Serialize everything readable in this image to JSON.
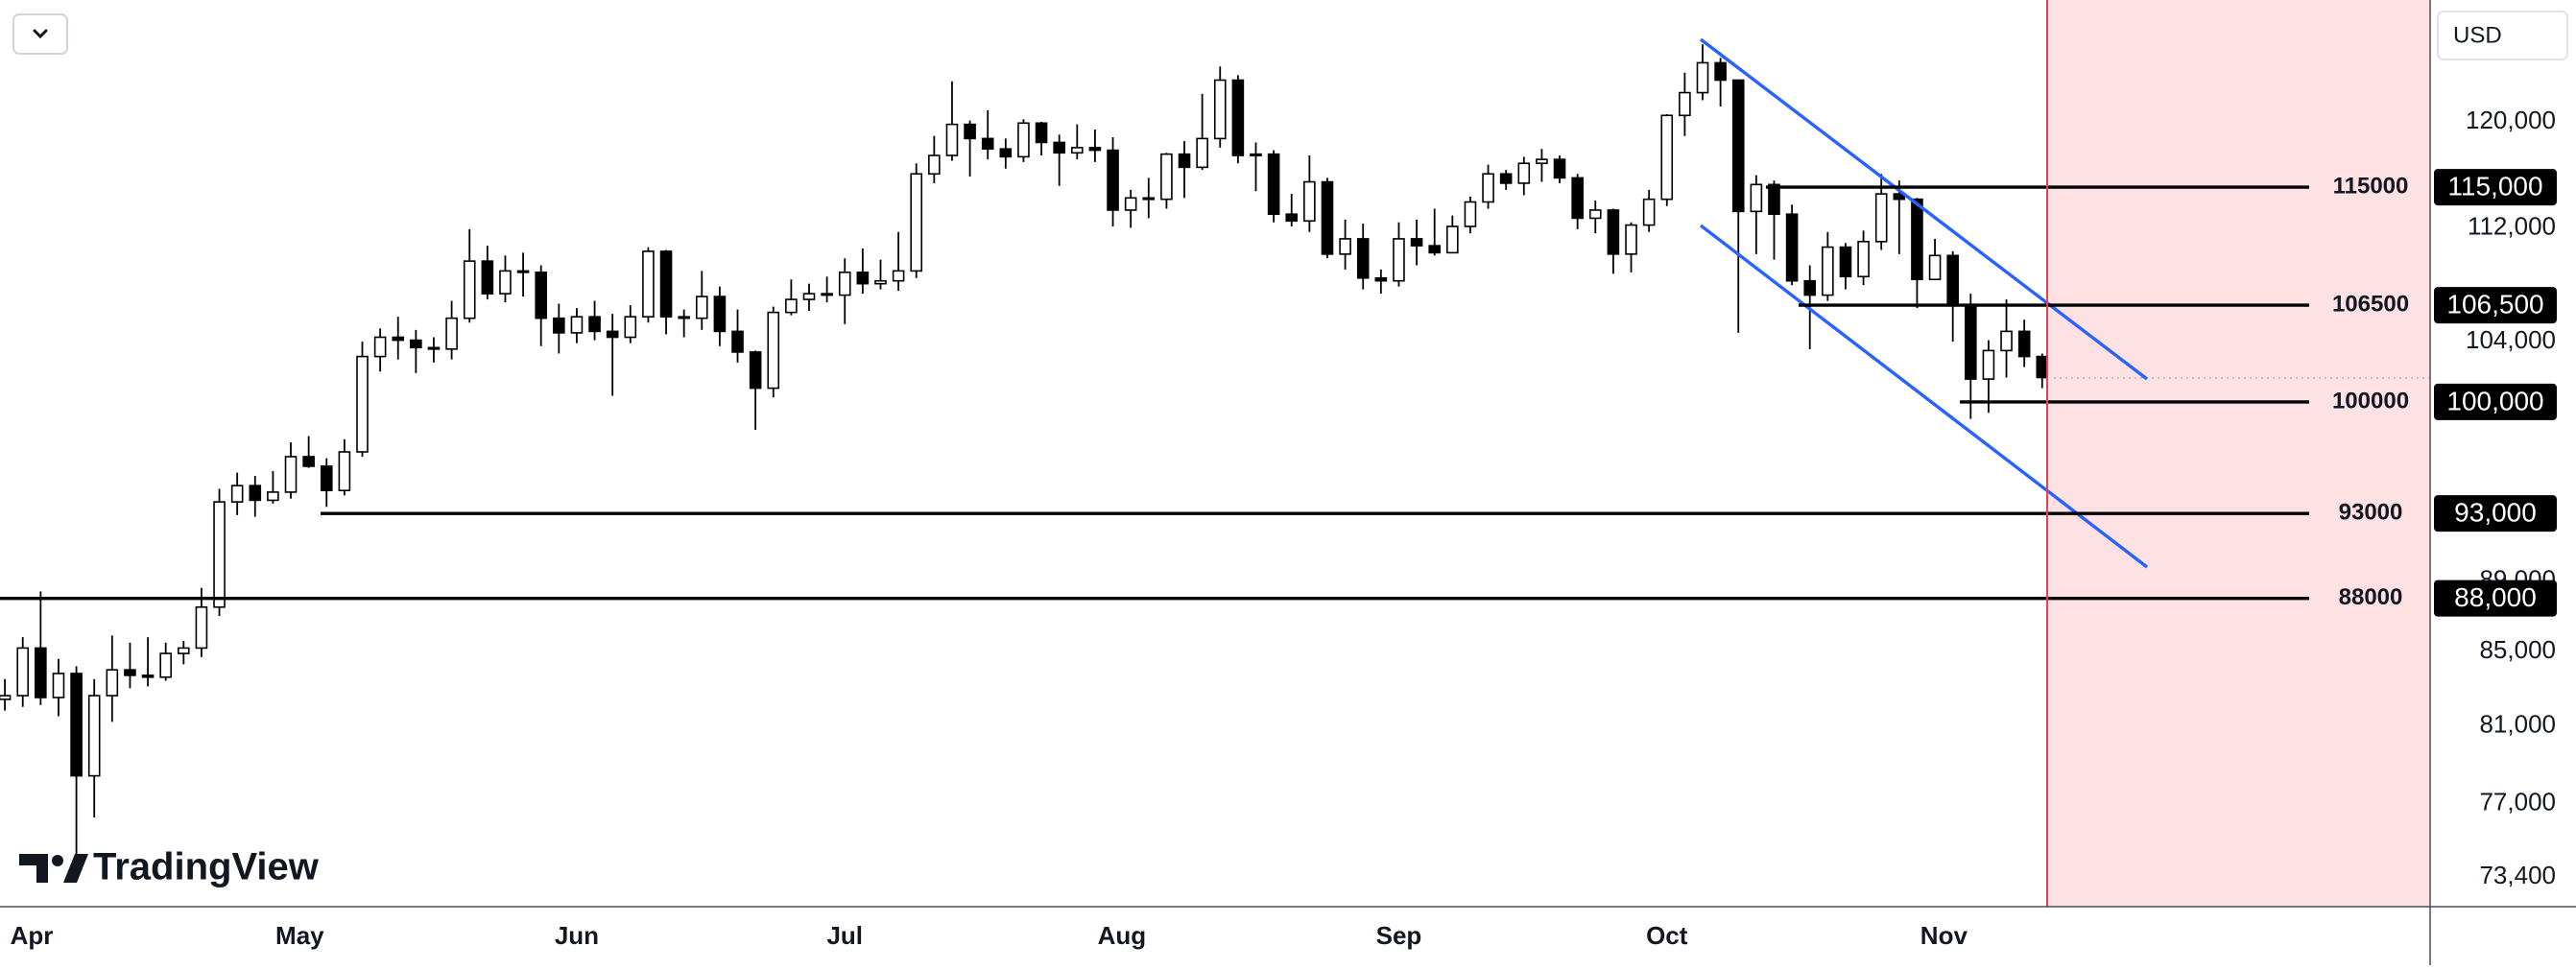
{
  "chart_data": {
    "type": "candlestick",
    "log_scale": true,
    "currency": "USD",
    "brand": "TradingView",
    "categories": [
      "Apr",
      "May",
      "Jun",
      "Jul",
      "Aug",
      "Sep",
      "Oct",
      "Nov"
    ],
    "up_color": "#ffffff",
    "down_color": "#000000",
    "channel_color": "#2962ff",
    "open": [
      82400,
      82600,
      85200,
      82500,
      83800,
      78400,
      82600,
      84000,
      83700,
      83600,
      84900,
      85200,
      87500,
      93700,
      94700,
      93800,
      94300,
      96500,
      95900,
      94400,
      96800,
      103000,
      104300,
      104100,
      103600,
      103500,
      105600,
      109600,
      107300,
      108900,
      108800,
      105600,
      104600,
      105700,
      104700,
      104300,
      105700,
      110300,
      105700,
      105600,
      107100,
      104700,
      103300,
      100900,
      106000,
      106900,
      107300,
      107200,
      108800,
      108000,
      108200,
      108900,
      116000,
      117400,
      119800,
      118700,
      117900,
      117300,
      119900,
      118400,
      117600,
      118000,
      117800,
      113300,
      114200,
      114100,
      117500,
      116500,
      118700,
      123300,
      117400,
      117500,
      113000,
      112500,
      115400,
      110100,
      111200,
      108400,
      108200,
      111200,
      110700,
      110200,
      112100,
      113900,
      116000,
      115300,
      116800,
      117100,
      115700,
      112700,
      113300,
      110100,
      112200,
      114100,
      120500,
      122300,
      124700,
      123300,
      113200,
      115200,
      113000,
      108200,
      107200,
      110600,
      108500,
      111000,
      114500,
      114100,
      108300,
      110000,
      106500,
      101500,
      103400,
      104700,
      103000
    ],
    "high": [
      83500,
      85800,
      88400,
      84600,
      84200,
      83500,
      85900,
      85500,
      85800,
      85500,
      85600,
      88600,
      94500,
      95500,
      95300,
      95600,
      97400,
      97800,
      96400,
      97600,
      104000,
      104900,
      105700,
      104800,
      104300,
      106800,
      111900,
      110700,
      110000,
      110200,
      109300,
      106600,
      106300,
      106800,
      105900,
      106500,
      110600,
      110400,
      106200,
      108900,
      107800,
      106200,
      103400,
      106400,
      108300,
      108000,
      108500,
      109800,
      110500,
      109700,
      111700,
      116800,
      118900,
      123200,
      120100,
      120900,
      118700,
      120200,
      120000,
      119000,
      119800,
      119400,
      118800,
      114800,
      115700,
      117600,
      118500,
      122200,
      124400,
      123700,
      118400,
      117800,
      114500,
      117400,
      115700,
      112600,
      112300,
      109000,
      112400,
      112600,
      113400,
      112900,
      114300,
      116700,
      116300,
      117300,
      117900,
      117400,
      116000,
      114000,
      113400,
      112400,
      114800,
      120600,
      123900,
      126200,
      125100,
      123300,
      115900,
      115500,
      113700,
      109300,
      111700,
      110900,
      111800,
      116000,
      115500,
      114200,
      111200,
      110300,
      107300,
      104100,
      106900,
      105500,
      103200
    ],
    "low": [
      81800,
      82000,
      82100,
      81500,
      74500,
      76300,
      81200,
      83000,
      83100,
      83400,
      84300,
      84700,
      87000,
      92900,
      92800,
      93600,
      93900,
      95800,
      93400,
      94100,
      96500,
      102000,
      102800,
      101900,
      102600,
      102800,
      105300,
      106900,
      106700,
      107100,
      103700,
      103200,
      103900,
      104100,
      100400,
      103900,
      105300,
      104500,
      104300,
      104800,
      103700,
      102600,
      98200,
      100300,
      105800,
      106100,
      106700,
      105200,
      107300,
      107600,
      107500,
      108400,
      115300,
      117000,
      115800,
      117100,
      116400,
      116900,
      117400,
      115100,
      117100,
      116900,
      112100,
      112000,
      112700,
      113400,
      114200,
      116300,
      118000,
      116800,
      114700,
      112400,
      112100,
      111700,
      109800,
      109000,
      107600,
      107300,
      107800,
      109300,
      110000,
      110600,
      111600,
      113400,
      114800,
      114400,
      115400,
      115300,
      111900,
      111600,
      108700,
      108800,
      111700,
      113600,
      118900,
      121700,
      121200,
      104600,
      110100,
      109700,
      107900,
      103500,
      106800,
      107600,
      107900,
      110400,
      110100,
      106300,
      108600,
      104000,
      98900,
      99300,
      101600,
      102300,
      100900
    ],
    "close": [
      82600,
      85200,
      82500,
      83800,
      78400,
      82600,
      84000,
      83700,
      83600,
      84900,
      85200,
      87500,
      93700,
      94700,
      93800,
      94300,
      96500,
      95900,
      94400,
      96800,
      103000,
      104300,
      104100,
      103600,
      103500,
      105600,
      109600,
      107300,
      108900,
      108800,
      105600,
      104600,
      105700,
      104700,
      104300,
      105700,
      110300,
      105700,
      105600,
      107100,
      104700,
      103300,
      100900,
      106000,
      106900,
      107300,
      107200,
      108800,
      108000,
      108200,
      108900,
      116000,
      117400,
      119800,
      118700,
      117900,
      117300,
      119900,
      118400,
      117600,
      118000,
      117800,
      113300,
      114200,
      114100,
      117500,
      116500,
      118700,
      123300,
      117400,
      117500,
      113000,
      112500,
      115400,
      110100,
      111200,
      108400,
      108200,
      111200,
      110700,
      110200,
      112100,
      113900,
      116000,
      115300,
      116800,
      117100,
      115700,
      112700,
      113300,
      110100,
      112200,
      114100,
      120500,
      122300,
      124700,
      123300,
      113200,
      115200,
      113000,
      108200,
      107200,
      110600,
      108500,
      111000,
      114500,
      114100,
      108300,
      110000,
      106500,
      101500,
      103400,
      104700,
      103000,
      101600
    ],
    "ylim": [
      72000,
      129900
    ],
    "yticks": [
      {
        "value": 120000,
        "label": "120,000"
      },
      {
        "value": 112000,
        "label": "112,000"
      },
      {
        "value": 104000,
        "label": "104,000"
      },
      {
        "value": 89000,
        "label": "89,000"
      },
      {
        "value": 85000,
        "label": "85,000"
      },
      {
        "value": 81000,
        "label": "81,000"
      },
      {
        "value": 77000,
        "label": "77,000"
      },
      {
        "value": 73400,
        "label": "73,400"
      }
    ],
    "levels": [
      {
        "value": 115000,
        "label": "115000",
        "price_label": "115,000"
      },
      {
        "value": 106500,
        "label": "106500",
        "price_label": "106,500"
      },
      {
        "value": 100000,
        "label": "100000",
        "price_label": "100,000"
      },
      {
        "value": 93000,
        "label": "93000",
        "price_label": "93,000"
      },
      {
        "value": 88000,
        "label": "88000",
        "price_label": "88,000"
      }
    ]
  }
}
